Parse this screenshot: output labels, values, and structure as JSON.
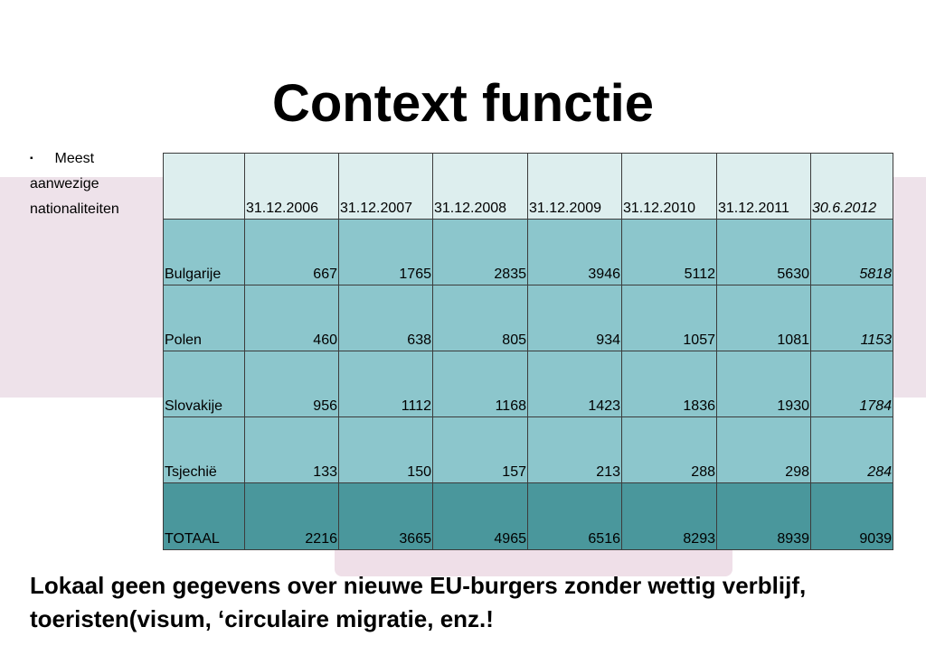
{
  "slide": {
    "title": "Context functie",
    "side_note": {
      "bullet": "▪",
      "line1": "Meest",
      "line2": "aanwezige",
      "line3": "nationaliteiten"
    },
    "footer": "Lokaal geen gegevens over nieuwe EU-burgers zonder wettig verblijf, toeristen(visum, ‘circulaire migratie, enz.!"
  },
  "table": {
    "headers": [
      "",
      "31.12.2006",
      "31.12.2007",
      "31.12.2008",
      "31.12.2009",
      "31.12.2010",
      "31.12.2011",
      "30.6.2012"
    ],
    "rows": [
      {
        "label": "Bulgarije",
        "values": [
          "667",
          "1765",
          "2835",
          "3946",
          "5112",
          "5630",
          "5818"
        ]
      },
      {
        "label": "Polen",
        "values": [
          "460",
          "638",
          "805",
          "934",
          "1057",
          "1081",
          "1153"
        ]
      },
      {
        "label": "Slovakije",
        "values": [
          "956",
          "1112",
          "1168",
          "1423",
          "1836",
          "1930",
          "1784"
        ]
      },
      {
        "label": "Tsjechië",
        "values": [
          "133",
          "150",
          "157",
          "213",
          "288",
          "298",
          "284"
        ]
      },
      {
        "label": "TOTAAL",
        "values": [
          "2216",
          "3665",
          "4965",
          "6516",
          "8293",
          "8939",
          "9039"
        ]
      }
    ],
    "colors": {
      "header_bg": "#ddeeee",
      "row_bg": "#8cc6cc",
      "total_bg": "#4a979c",
      "band_bg": "#eee2ea"
    }
  }
}
